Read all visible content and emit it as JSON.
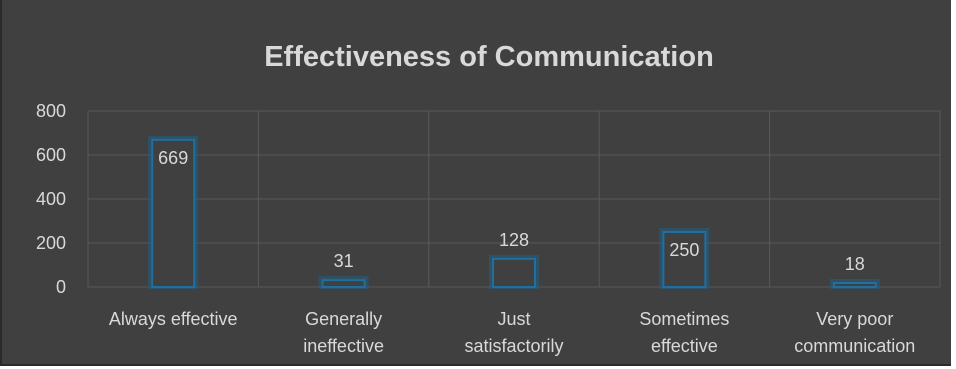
{
  "chart_data": {
    "type": "bar",
    "title": "Effectiveness of Communication",
    "categories": [
      [
        "Always effective"
      ],
      [
        "Generally",
        "ineffective"
      ],
      [
        "Just",
        "satisfactorily"
      ],
      [
        "Sometimes",
        "effective"
      ],
      [
        "Very poor",
        "communication"
      ]
    ],
    "values": [
      669,
      31,
      128,
      250,
      18
    ],
    "data_labels": [
      "669",
      "31",
      "128",
      "250",
      "18"
    ],
    "yticks": [
      "0",
      "200",
      "400",
      "600",
      "800"
    ],
    "ylim": [
      0,
      800
    ],
    "grid": true,
    "legend": "none",
    "colors": {
      "background": "#404040",
      "bar_fill": "#404040",
      "bar_stroke": "#1f6f9f",
      "bar_glow": "#1d5f86",
      "grid": "#595959",
      "text": "#d9d9d9"
    }
  }
}
